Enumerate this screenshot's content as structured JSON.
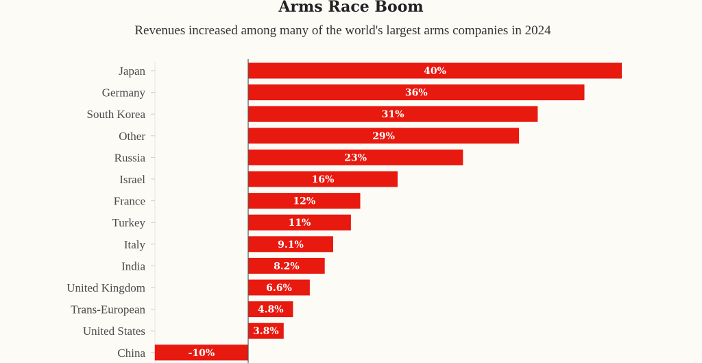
{
  "chart_data": {
    "type": "bar",
    "orientation": "horizontal",
    "title": "Arms Race Boom",
    "subtitle": "Revenues increased among many of the world's largest arms companies in 2024",
    "categories": [
      "Japan",
      "Germany",
      "South Korea",
      "Other",
      "Russia",
      "Israel",
      "France",
      "Turkey",
      "Italy",
      "India",
      "United Kingdom",
      "Trans-European",
      "United States",
      "China"
    ],
    "values": [
      40,
      36,
      31,
      29,
      23,
      16,
      12,
      11,
      9.1,
      8.2,
      6.6,
      4.8,
      3.8,
      -10
    ],
    "value_labels": [
      "40%",
      "36%",
      "31%",
      "29%",
      "23%",
      "16%",
      "12%",
      "11%",
      "9.1%",
      "8.2%",
      "6.6%",
      "4.8%",
      "3.8%",
      "-10%"
    ],
    "unit": "%",
    "xlim": [
      -10,
      40
    ],
    "xlabel": "",
    "ylabel": "",
    "grid": false,
    "legend": "none",
    "bar_color": "#e8190f",
    "axis_color": "#555555"
  }
}
